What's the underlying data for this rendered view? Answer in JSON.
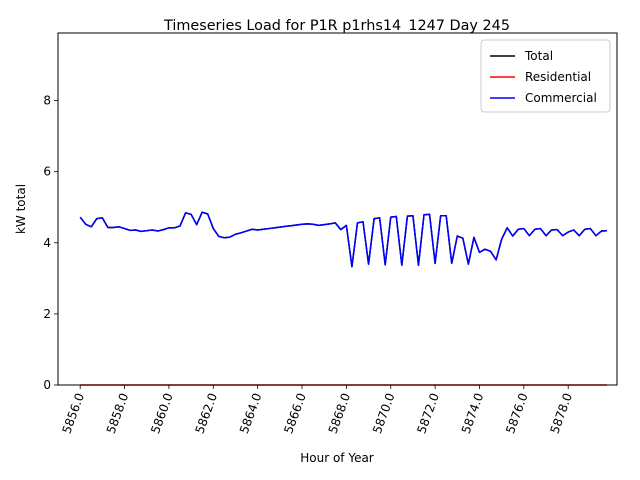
{
  "chart_data": {
    "type": "line",
    "title": "Timeseries Load for P1R p1rhs14_1247  Day 245",
    "xlabel": "Hour of Year",
    "ylabel": "kW total",
    "xlim": [
      5855.0,
      5880.2
    ],
    "ylim": [
      0,
      9.9
    ],
    "x_ticks": [
      5856.0,
      5858.0,
      5860.0,
      5862.0,
      5864.0,
      5866.0,
      5868.0,
      5870.0,
      5872.0,
      5874.0,
      5876.0,
      5878.0
    ],
    "x_tick_labels": [
      "5856.0",
      "5858.0",
      "5860.0",
      "5862.0",
      "5864.0",
      "5866.0",
      "5868.0",
      "5870.0",
      "5872.0",
      "5874.0",
      "5876.0",
      "5878.0"
    ],
    "y_ticks": [
      0,
      2,
      4,
      6,
      8
    ],
    "y_tick_labels": [
      "0",
      "2",
      "4",
      "6",
      "8"
    ],
    "legend_position": "top-right",
    "series": [
      {
        "name": "Total",
        "color": "#000000",
        "x": [
          5856.0,
          5856.25,
          5856.5,
          5856.75,
          5857.0,
          5857.25,
          5857.5,
          5857.75,
          5858.0,
          5858.25,
          5858.5,
          5858.75,
          5859.0,
          5859.25,
          5859.5,
          5859.75,
          5860.0,
          5860.25,
          5860.5,
          5860.75,
          5861.0,
          5861.25,
          5861.5,
          5861.75,
          5862.0,
          5862.25,
          5862.5,
          5862.75,
          5863.0,
          5863.25,
          5863.5,
          5863.75,
          5864.0,
          5864.25,
          5864.5,
          5864.75,
          5865.0,
          5865.25,
          5865.5,
          5865.75,
          5866.0,
          5866.25,
          5866.5,
          5866.75,
          5867.0,
          5867.25,
          5867.5,
          5867.75,
          5868.0,
          5868.25,
          5868.5,
          5868.75,
          5869.0,
          5869.25,
          5869.5,
          5869.75,
          5870.0,
          5870.25,
          5870.5,
          5870.75,
          5871.0,
          5871.25,
          5871.5,
          5871.75,
          5872.0,
          5872.25,
          5872.5,
          5872.75,
          5873.0,
          5873.25,
          5873.5,
          5873.75,
          5874.0,
          5874.25,
          5874.5,
          5874.75,
          5875.0,
          5875.25,
          5875.5,
          5875.75,
          5876.0,
          5876.25,
          5876.5,
          5876.75,
          5877.0,
          5877.25,
          5877.5,
          5877.75,
          5878.0,
          5878.25,
          5878.5,
          5878.75,
          5879.0,
          5879.25,
          5879.5,
          5879.75
        ],
        "values": [
          4.72,
          4.52,
          4.45,
          4.68,
          4.7,
          4.43,
          4.43,
          4.45,
          4.4,
          4.35,
          4.36,
          4.32,
          4.34,
          4.36,
          4.33,
          4.37,
          4.42,
          4.42,
          4.47,
          4.84,
          4.8,
          4.51,
          4.86,
          4.81,
          4.4,
          4.18,
          4.14,
          4.16,
          4.24,
          4.28,
          4.33,
          4.38,
          4.36,
          4.38,
          4.4,
          4.42,
          4.44,
          4.46,
          4.48,
          4.5,
          4.52,
          4.53,
          4.52,
          4.49,
          4.51,
          4.53,
          4.56,
          4.37,
          4.49,
          3.33,
          4.56,
          4.59,
          3.4,
          4.68,
          4.7,
          3.38,
          4.72,
          4.74,
          3.37,
          4.75,
          4.76,
          3.37,
          4.79,
          4.8,
          3.42,
          4.76,
          4.76,
          3.42,
          4.19,
          4.13,
          3.4,
          4.15,
          3.73,
          3.82,
          3.76,
          3.52,
          4.1,
          4.42,
          4.19,
          4.38,
          4.4,
          4.2,
          4.38,
          4.4,
          4.2,
          4.36,
          4.37,
          4.2,
          4.3,
          4.36,
          4.2,
          4.38,
          4.4,
          4.2,
          4.33,
          4.34
        ]
      },
      {
        "name": "Residential",
        "color": "#ff0000",
        "x": [
          5856.0,
          5879.75
        ],
        "values": [
          0,
          0
        ]
      },
      {
        "name": "Commercial",
        "color": "#0000ff",
        "x": [
          5856.0,
          5856.25,
          5856.5,
          5856.75,
          5857.0,
          5857.25,
          5857.5,
          5857.75,
          5858.0,
          5858.25,
          5858.5,
          5858.75,
          5859.0,
          5859.25,
          5859.5,
          5859.75,
          5860.0,
          5860.25,
          5860.5,
          5860.75,
          5861.0,
          5861.25,
          5861.5,
          5861.75,
          5862.0,
          5862.25,
          5862.5,
          5862.75,
          5863.0,
          5863.25,
          5863.5,
          5863.75,
          5864.0,
          5864.25,
          5864.5,
          5864.75,
          5865.0,
          5865.25,
          5865.5,
          5865.75,
          5866.0,
          5866.25,
          5866.5,
          5866.75,
          5867.0,
          5867.25,
          5867.5,
          5867.75,
          5868.0,
          5868.25,
          5868.5,
          5868.75,
          5869.0,
          5869.25,
          5869.5,
          5869.75,
          5870.0,
          5870.25,
          5870.5,
          5870.75,
          5871.0,
          5871.25,
          5871.5,
          5871.75,
          5872.0,
          5872.25,
          5872.5,
          5872.75,
          5873.0,
          5873.25,
          5873.5,
          5873.75,
          5874.0,
          5874.25,
          5874.5,
          5874.75,
          5875.0,
          5875.25,
          5875.5,
          5875.75,
          5876.0,
          5876.25,
          5876.5,
          5876.75,
          5877.0,
          5877.25,
          5877.5,
          5877.75,
          5878.0,
          5878.25,
          5878.5,
          5878.75,
          5879.0,
          5879.25,
          5879.5,
          5879.75
        ],
        "values": [
          4.72,
          4.52,
          4.45,
          4.68,
          4.7,
          4.43,
          4.43,
          4.45,
          4.4,
          4.35,
          4.36,
          4.32,
          4.34,
          4.36,
          4.33,
          4.37,
          4.42,
          4.42,
          4.47,
          4.84,
          4.8,
          4.51,
          4.86,
          4.81,
          4.4,
          4.18,
          4.14,
          4.16,
          4.24,
          4.28,
          4.33,
          4.38,
          4.36,
          4.38,
          4.4,
          4.42,
          4.44,
          4.46,
          4.48,
          4.5,
          4.52,
          4.53,
          4.52,
          4.49,
          4.51,
          4.53,
          4.56,
          4.37,
          4.49,
          3.33,
          4.56,
          4.59,
          3.4,
          4.68,
          4.7,
          3.38,
          4.72,
          4.74,
          3.37,
          4.75,
          4.76,
          3.37,
          4.79,
          4.8,
          3.42,
          4.76,
          4.76,
          3.42,
          4.19,
          4.13,
          3.4,
          4.15,
          3.73,
          3.82,
          3.76,
          3.52,
          4.1,
          4.42,
          4.19,
          4.38,
          4.4,
          4.2,
          4.38,
          4.4,
          4.2,
          4.36,
          4.37,
          4.2,
          4.3,
          4.36,
          4.2,
          4.38,
          4.4,
          4.2,
          4.33,
          4.34
        ]
      }
    ]
  }
}
